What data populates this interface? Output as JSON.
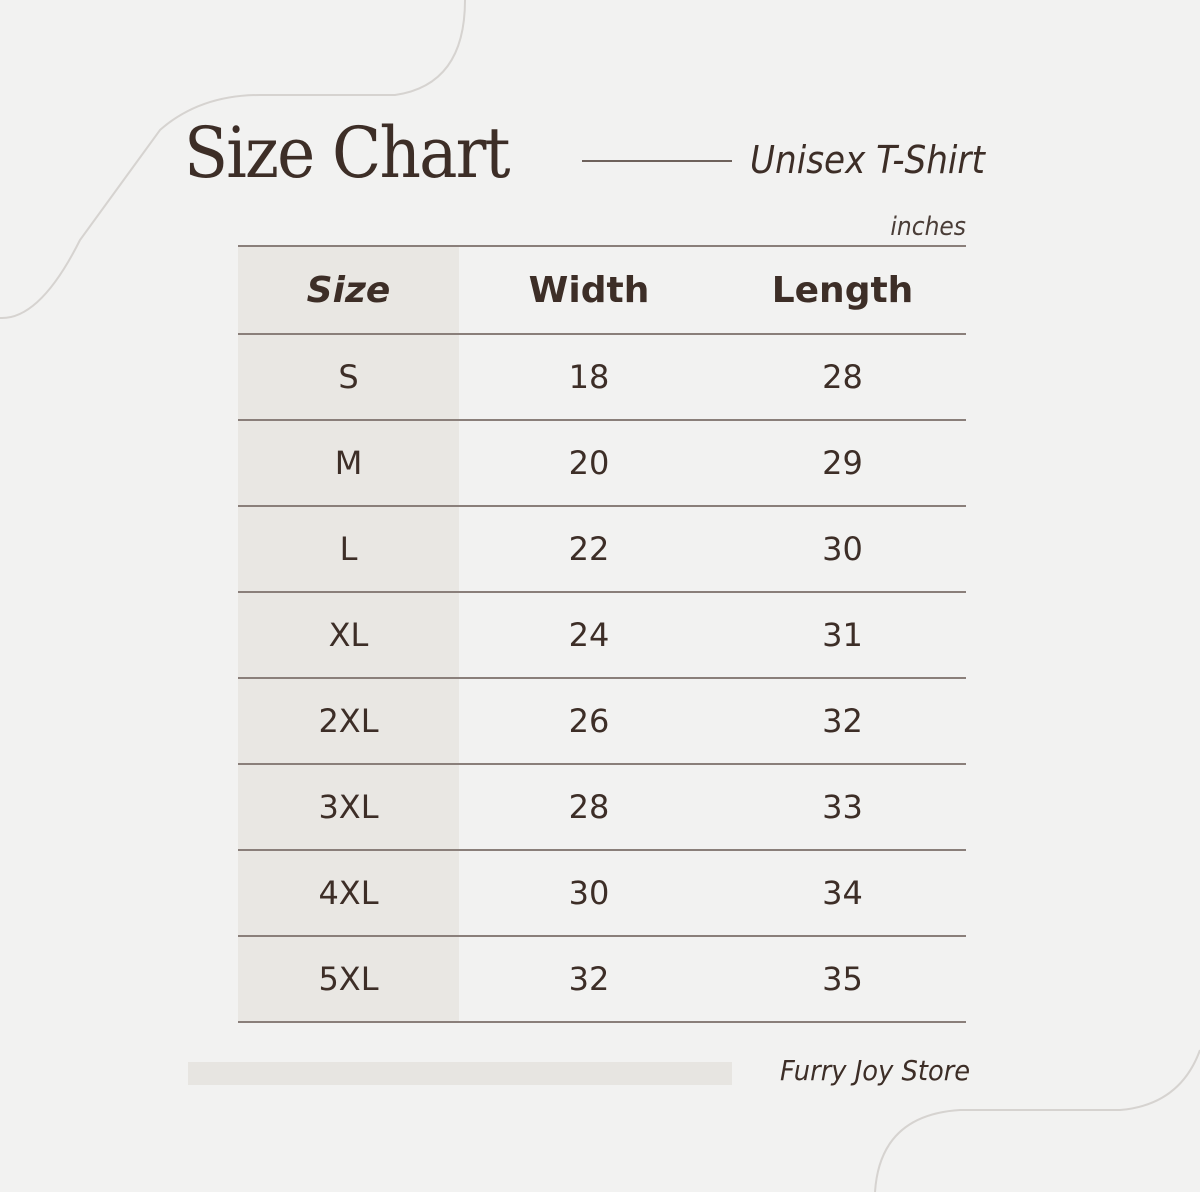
{
  "header": {
    "title": "Size Chart",
    "subtitle": "Unisex T-Shirt",
    "units": "inches"
  },
  "table": {
    "columns": [
      "Size",
      "Width",
      "Length"
    ],
    "rows": [
      [
        "S",
        "18",
        "28"
      ],
      [
        "M",
        "20",
        "29"
      ],
      [
        "L",
        "22",
        "30"
      ],
      [
        "XL",
        "24",
        "31"
      ],
      [
        "2XL",
        "26",
        "32"
      ],
      [
        "3XL",
        "28",
        "33"
      ],
      [
        "4XL",
        "30",
        "34"
      ],
      [
        "5XL",
        "32",
        "35"
      ]
    ]
  },
  "footer": {
    "store": "Furry Joy Store"
  },
  "colors": {
    "background": "#f2f2f1",
    "text": "#3d2e27",
    "size_column": "#e9e7e3"
  }
}
